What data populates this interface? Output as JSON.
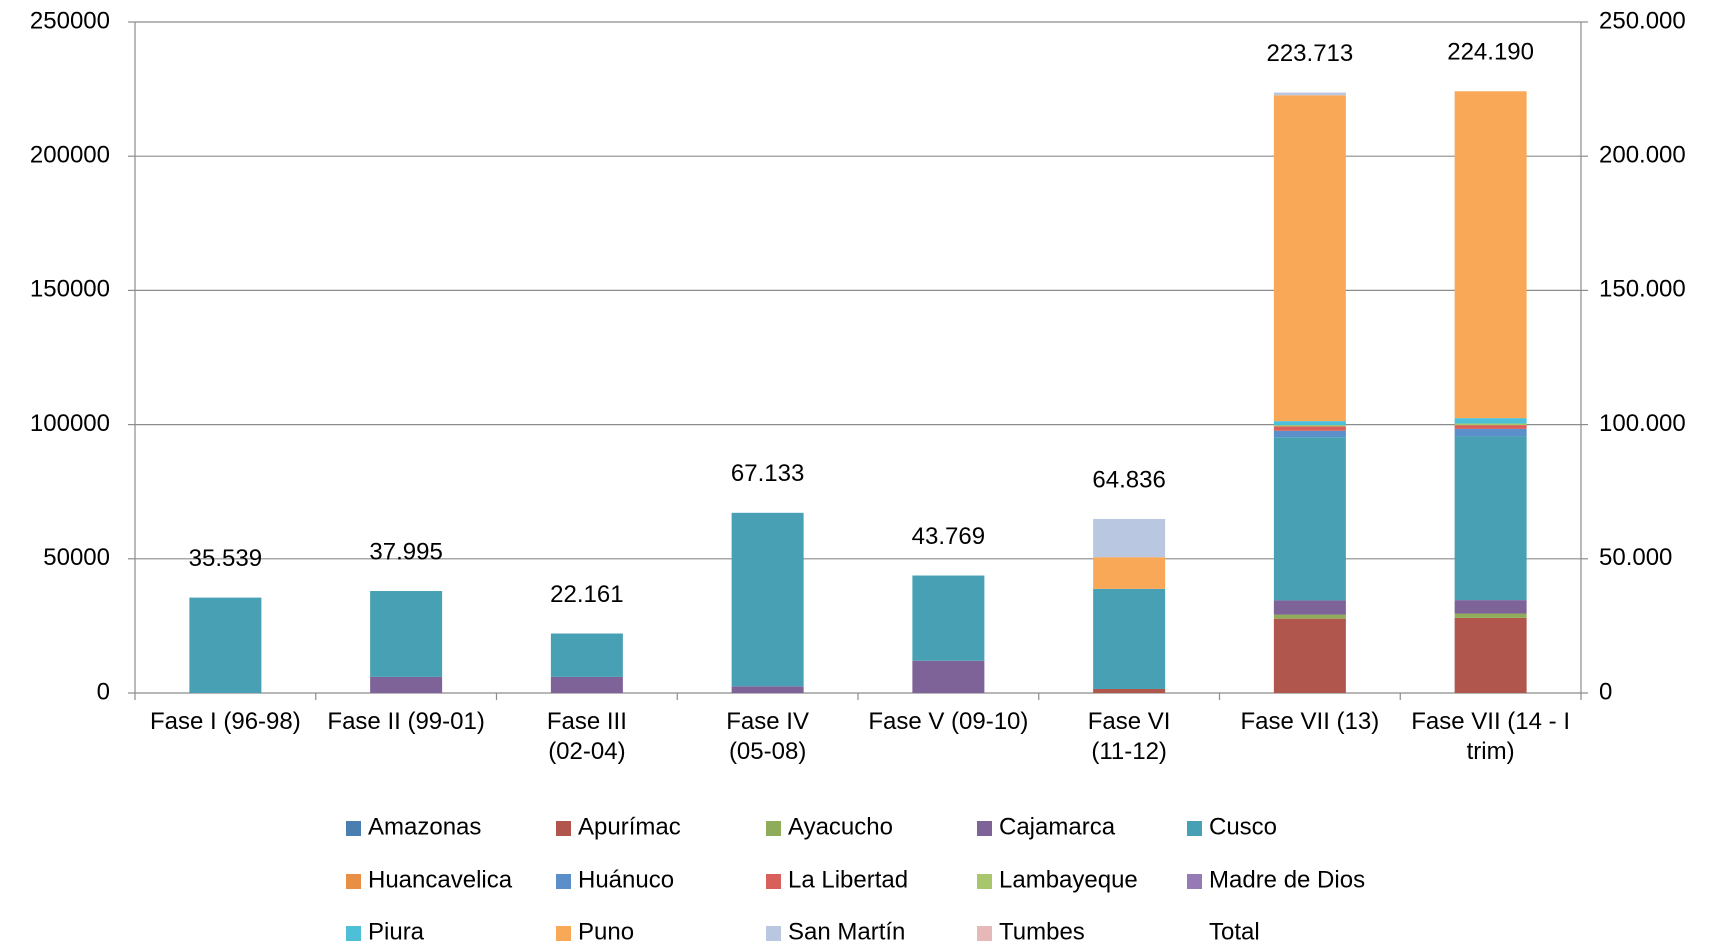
{
  "chart_data": {
    "type": "stacked_bar",
    "categories": [
      "Fase I (96-98)",
      "Fase II (99-01)",
      "Fase III\n(02-04)",
      "Fase IV\n(05-08)",
      "Fase V (09-10)",
      "Fase VI\n(11-12)",
      "Fase VII (13)",
      "Fase VII (14 - I\ntrim)"
    ],
    "series": [
      {
        "name": "Amazonas",
        "color": "#4a7eb1",
        "values": [
          0,
          0,
          0,
          0,
          0,
          0,
          0,
          0
        ]
      },
      {
        "name": "Apurímac",
        "color": "#b0564d",
        "values": [
          0,
          0,
          0,
          0,
          0,
          1500,
          27700,
          28000
        ]
      },
      {
        "name": "Ayacucho",
        "color": "#8fac5a",
        "values": [
          0,
          0,
          0,
          0,
          0,
          0,
          1500,
          1600
        ]
      },
      {
        "name": "Cajamarca",
        "color": "#7d6397",
        "values": [
          0,
          6000,
          6000,
          2500,
          12000,
          0,
          5300,
          5000
        ]
      },
      {
        "name": "Cusco",
        "color": "#47a0b3",
        "values": [
          35539,
          31995,
          16161,
          64633,
          31769,
          37300,
          60800,
          61000
        ]
      },
      {
        "name": "Huancavelica",
        "color": "#e88f45",
        "values": [
          0,
          0,
          0,
          0,
          0,
          0,
          0,
          0
        ]
      },
      {
        "name": "Huánuco",
        "color": "#5b8fca",
        "values": [
          0,
          0,
          0,
          0,
          0,
          0,
          2400,
          2800
        ]
      },
      {
        "name": "La Libertad",
        "color": "#d9605a",
        "values": [
          0,
          0,
          0,
          0,
          0,
          0,
          1600,
          1400
        ]
      },
      {
        "name": "Lambayeque",
        "color": "#a8c66c",
        "values": [
          0,
          0,
          0,
          0,
          0,
          0,
          500,
          600
        ]
      },
      {
        "name": "Madre de Dios",
        "color": "#957ab5",
        "values": [
          0,
          0,
          0,
          0,
          0,
          0,
          0,
          0
        ]
      },
      {
        "name": "Piura",
        "color": "#4dbfd9",
        "values": [
          0,
          0,
          0,
          0,
          0,
          0,
          1500,
          2000
        ]
      },
      {
        "name": "Puno",
        "color": "#f9a857",
        "values": [
          0,
          0,
          0,
          0,
          0,
          11800,
          121413,
          121790
        ]
      },
      {
        "name": "San Martín",
        "color": "#b9c7e0",
        "values": [
          0,
          0,
          0,
          0,
          0,
          14236,
          1000,
          0
        ]
      },
      {
        "name": "Tumbes",
        "color": "#e6b9b8",
        "values": [
          0,
          0,
          0,
          0,
          0,
          0,
          0,
          0
        ]
      },
      {
        "name": "Total",
        "axis": "y2",
        "values": [
          35539,
          37995,
          22161,
          67133,
          43769,
          64836,
          223713,
          224190
        ],
        "value_labels": [
          "35.539",
          "37.995",
          "22.161",
          "67.133",
          "43.769",
          "64.836",
          "223.713",
          "224.190"
        ]
      }
    ],
    "ylim": [
      0,
      250000
    ],
    "yticks": [
      0,
      50000,
      100000,
      150000,
      200000,
      250000
    ],
    "y2lim": [
      0,
      250000
    ],
    "y2ticks": [
      0,
      {
        "value": 50000,
        "label": "50.000"
      },
      {
        "value": 100000,
        "label": "100.000"
      },
      {
        "value": 150000,
        "label": "150.000"
      },
      {
        "value": 200000,
        "label": "200.000"
      },
      {
        "value": 250000,
        "label": "250.000"
      }
    ],
    "grid": true
  }
}
